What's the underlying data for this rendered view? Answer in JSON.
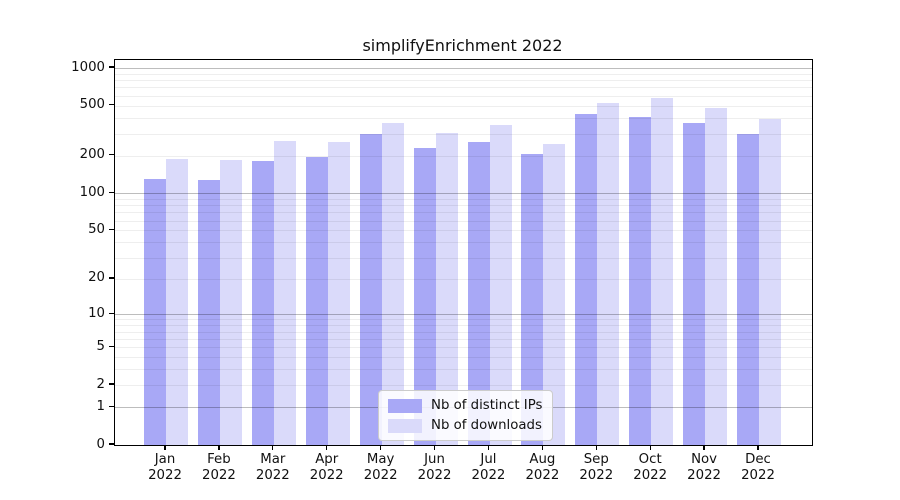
{
  "chart_data": {
    "type": "bar",
    "title": "simplifyEnrichment 2022",
    "categories": [
      "Jan 2022",
      "Feb 2022",
      "Mar 2022",
      "Apr 2022",
      "May 2022",
      "Jun 2022",
      "Jul 2022",
      "Aug 2022",
      "Sep 2022",
      "Oct 2022",
      "Nov 2022",
      "Dec 2022"
    ],
    "xtick_months": [
      "Jan",
      "Feb",
      "Mar",
      "Apr",
      "May",
      "Jun",
      "Jul",
      "Aug",
      "Sep",
      "Oct",
      "Nov",
      "Dec"
    ],
    "xtick_year": "2022",
    "series": [
      {
        "name": "Nb of distinct IPs",
        "color": "#a8a8f6",
        "values": [
          130,
          127,
          180,
          195,
          297,
          232,
          255,
          205,
          430,
          408,
          362,
          297
        ]
      },
      {
        "name": "Nb of downloads",
        "color": "#dadafa",
        "values": [
          189,
          185,
          263,
          258,
          362,
          306,
          354,
          247,
          525,
          575,
          480,
          395
        ]
      }
    ],
    "yscale": "log1p",
    "yticks": [
      1000,
      500,
      200,
      100,
      50,
      20,
      10,
      5,
      2,
      1,
      0
    ],
    "ylim": [
      0,
      1100
    ],
    "grid": true,
    "legend_position": "lower center"
  },
  "colors": {
    "bar_distinct_ips": "#a8a8f6",
    "bar_downloads": "#dadafa",
    "grid_major": "#bdbdbd",
    "grid_minor": "#e8e8e8",
    "axis": "#000000",
    "text": "#111111"
  }
}
